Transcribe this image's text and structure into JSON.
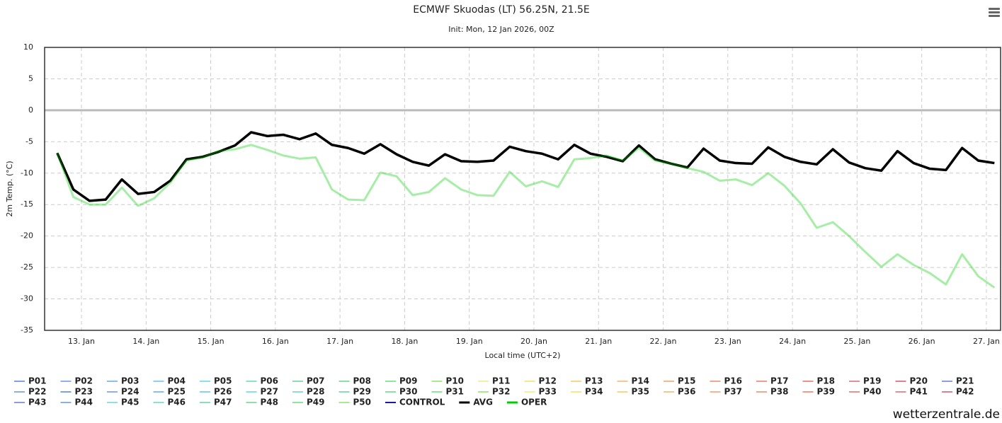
{
  "chart_data": {
    "type": "line",
    "title": "ECMWF Skuodas (LT) 56.25N, 21.5E",
    "subtitle": "Init: Mon, 12 Jan 2026, 00Z",
    "x_label": "Local time (UTC+2)",
    "y_label": "2m Temp. (°C)",
    "branding": "wetterzentrale.de",
    "grid": true,
    "xlim": [
      12.43,
      27.22
    ],
    "xticks": [
      {
        "value": 13,
        "label": "13. Jan"
      },
      {
        "value": 14,
        "label": "14. Jan"
      },
      {
        "value": 15,
        "label": "15. Jan"
      },
      {
        "value": 16,
        "label": "16. Jan"
      },
      {
        "value": 17,
        "label": "17. Jan"
      },
      {
        "value": 18,
        "label": "18. Jan"
      },
      {
        "value": 19,
        "label": "19. Jan"
      },
      {
        "value": 20,
        "label": "20. Jan"
      },
      {
        "value": 21,
        "label": "21. Jan"
      },
      {
        "value": 22,
        "label": "22. Jan"
      },
      {
        "value": 23,
        "label": "23. Jan"
      },
      {
        "value": 24,
        "label": "24. Jan"
      },
      {
        "value": 25,
        "label": "25. Jan"
      },
      {
        "value": 26,
        "label": "26. Jan"
      },
      {
        "value": 27,
        "label": "27. Jan"
      }
    ],
    "ylim": [
      -35,
      10
    ],
    "yticks": [
      -35,
      -30,
      -25,
      -20,
      -15,
      -10,
      -5,
      0,
      5,
      10
    ],
    "x": [
      12.625,
      12.875,
      13.125,
      13.375,
      13.625,
      13.875,
      14.125,
      14.375,
      14.625,
      14.875,
      15.125,
      15.375,
      15.625,
      15.875,
      16.125,
      16.375,
      16.625,
      16.875,
      17.125,
      17.375,
      17.625,
      17.875,
      18.125,
      18.375,
      18.625,
      18.875,
      19.125,
      19.375,
      19.625,
      19.875,
      20.125,
      20.375,
      20.625,
      20.875,
      21.125,
      21.375,
      21.625,
      21.875,
      22.125,
      22.375,
      22.625,
      22.875,
      23.125,
      23.375,
      23.625,
      23.875,
      24.125,
      24.375,
      24.625,
      24.875,
      25.125,
      25.375,
      25.625,
      25.875,
      26.125,
      26.375,
      26.625,
      26.875,
      27.125
    ],
    "series": [
      {
        "name": "P01",
        "color": "#7fa2e0"
      },
      {
        "name": "P02",
        "color": "#8fb0ec"
      },
      {
        "name": "P03",
        "color": "#8cc0ec"
      },
      {
        "name": "P04",
        "color": "#8cd2ee"
      },
      {
        "name": "P05",
        "color": "#8ce0ea"
      },
      {
        "name": "P06",
        "color": "#8ce0cc"
      },
      {
        "name": "P07",
        "color": "#8cdcb4"
      },
      {
        "name": "P08",
        "color": "#8ce0a0"
      },
      {
        "name": "P09",
        "color": "#8ce896"
      },
      {
        "name": "P10",
        "color": "#a4ec8c"
      },
      {
        "name": "P11",
        "color": "#f4f0a0"
      },
      {
        "name": "P12",
        "color": "#f8e888"
      },
      {
        "name": "P13",
        "color": "#f8d888"
      },
      {
        "name": "P14",
        "color": "#f4c890"
      },
      {
        "name": "P15",
        "color": "#f4b890"
      },
      {
        "name": "P16",
        "color": "#f0a890"
      },
      {
        "name": "P17",
        "color": "#f09c8c"
      },
      {
        "name": "P18",
        "color": "#e8948c"
      },
      {
        "name": "P19",
        "color": "#e09098"
      },
      {
        "name": "P20",
        "color": "#e08090"
      },
      {
        "name": "P21",
        "color": "#8c9ce0"
      },
      {
        "name": "P22",
        "color": "#8cb0e0"
      },
      {
        "name": "P23",
        "color": "#7fa2e0"
      },
      {
        "name": "P24",
        "color": "#8fb0ec"
      },
      {
        "name": "P25",
        "color": "#8cc0ec"
      },
      {
        "name": "P26",
        "color": "#8cd2ee"
      },
      {
        "name": "P27",
        "color": "#8ce0ea"
      },
      {
        "name": "P28",
        "color": "#8ce0cc"
      },
      {
        "name": "P29",
        "color": "#8cdcb4"
      },
      {
        "name": "P30",
        "color": "#8ce0a0"
      },
      {
        "name": "P31",
        "color": "#8ce896"
      },
      {
        "name": "P32",
        "color": "#a4ec8c"
      },
      {
        "name": "P33",
        "color": "#f4f0a0"
      },
      {
        "name": "P34",
        "color": "#f8e888"
      },
      {
        "name": "P35",
        "color": "#f8d888"
      },
      {
        "name": "P36",
        "color": "#f4c890"
      },
      {
        "name": "P37",
        "color": "#f4b890"
      },
      {
        "name": "P38",
        "color": "#f0a890"
      },
      {
        "name": "P39",
        "color": "#f09c8c"
      },
      {
        "name": "P40",
        "color": "#e8948c"
      },
      {
        "name": "P41",
        "color": "#e09098"
      },
      {
        "name": "P42",
        "color": "#e08090"
      },
      {
        "name": "P43",
        "color": "#8c9ce0"
      },
      {
        "name": "P44",
        "color": "#8cb0e0"
      },
      {
        "name": "P45",
        "color": "#8ce0ea"
      },
      {
        "name": "P46",
        "color": "#8ce0cc"
      },
      {
        "name": "P47",
        "color": "#8cdcb4"
      },
      {
        "name": "P48",
        "color": "#8ce0a0"
      },
      {
        "name": "P49",
        "color": "#8ce896"
      },
      {
        "name": "P50",
        "color": "#a4ec8c"
      },
      {
        "name": "CONTROL",
        "color": "#1a1aa8"
      },
      {
        "name": "AVG",
        "color": "#000000",
        "values": [
          -6.8,
          -12.6,
          -14.4,
          -14.2,
          -11,
          -13.3,
          -13,
          -11.2,
          -7.8,
          -7.4,
          -6.6,
          -5.6,
          -3.5,
          -4.1,
          -3.9,
          -4.6,
          -3.7,
          -5.5,
          -6,
          -6.9,
          -5.4,
          -7,
          -8.2,
          -8.8,
          -7,
          -8.1,
          -8.2,
          -8,
          -5.8,
          -6.5,
          -6.9,
          -7.8,
          -5.5,
          -6.9,
          -7.4,
          -8.1,
          -5.6,
          -7.8,
          -8.5,
          -9.1,
          -6.1,
          -8,
          -8.4,
          -8.5,
          -5.9,
          -7.4,
          -8.2,
          -8.6,
          -6.2,
          -8.3,
          -9.2,
          -9.6,
          -6.5,
          -8.4,
          -9.3,
          -9.5,
          -6,
          -8,
          -8.4
        ]
      },
      {
        "name": "OPER",
        "color": "#00cc00",
        "values": [
          -6.8,
          -13.8,
          -15,
          -15,
          -12.3,
          -15.2,
          -14,
          -11.5,
          -8,
          -7.5,
          -6.5,
          -6.2,
          -5.5,
          -6.3,
          -7.2,
          -7.7,
          -7.5,
          -12.6,
          -14.2,
          -14.3,
          -9.9,
          -10.5,
          -13.5,
          -13,
          -10.8,
          -12.6,
          -13.5,
          -13.6,
          -9.8,
          -12.1,
          -11.3,
          -12.2,
          -7.8,
          -7.6,
          -7.2,
          -8,
          -6,
          -8,
          -8.5,
          -9.2,
          -9.8,
          -11.2,
          -11,
          -11.9,
          -10,
          -12,
          -14.8,
          -18.7,
          -17.8,
          -20,
          -22.5,
          -24.9,
          -22.9,
          -24.6,
          -25.9,
          -27.7,
          -22.9,
          -26.4,
          -28.2
        ]
      }
    ]
  }
}
